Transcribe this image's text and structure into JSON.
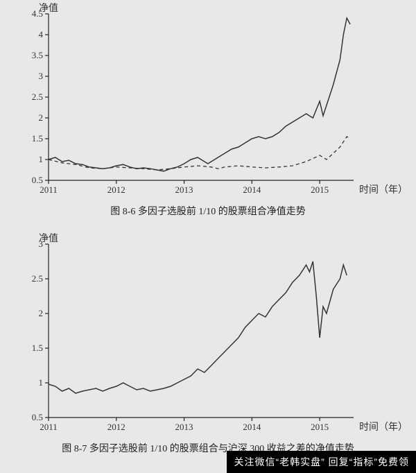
{
  "chart1": {
    "type": "line",
    "y_axis_title": "净值",
    "x_axis_title": "时间（年）",
    "caption": "图 8-6  多因子选股前 1/10 的股票组合净值走势",
    "xlim": [
      2011,
      2015.5
    ],
    "ylim": [
      0.5,
      4.5
    ],
    "ytick_step": 0.5,
    "xticks": [
      2011,
      2012,
      2013,
      2014,
      2015
    ],
    "yticks": [
      0.5,
      1,
      1.5,
      2,
      2.5,
      3,
      3.5,
      4,
      4.5
    ],
    "background_color": "#e8e8e6",
    "axis_color": "#222222",
    "line_color": "#333333",
    "line_color_dashed": "#333333",
    "title_fontsize": 14,
    "tick_fontsize": 13,
    "line_width": 1.5,
    "series_solid": {
      "x": [
        2011,
        2011.1,
        2011.2,
        2011.3,
        2011.4,
        2011.5,
        2011.6,
        2011.7,
        2011.8,
        2011.9,
        2012,
        2012.1,
        2012.2,
        2012.3,
        2012.4,
        2012.5,
        2012.6,
        2012.7,
        2012.8,
        2012.9,
        2013,
        2013.1,
        2013.2,
        2013.3,
        2013.35,
        2013.5,
        2013.6,
        2013.7,
        2013.8,
        2013.9,
        2014,
        2014.1,
        2014.2,
        2014.3,
        2014.4,
        2014.5,
        2014.6,
        2014.7,
        2014.8,
        2014.9,
        2015,
        2015.05,
        2015.1,
        2015.2,
        2015.3,
        2015.35,
        2015.4,
        2015.45
      ],
      "y": [
        1.0,
        1.05,
        0.95,
        0.98,
        0.9,
        0.88,
        0.82,
        0.8,
        0.78,
        0.8,
        0.85,
        0.88,
        0.82,
        0.78,
        0.8,
        0.78,
        0.75,
        0.72,
        0.78,
        0.82,
        0.9,
        1.0,
        1.05,
        0.95,
        0.9,
        1.05,
        1.15,
        1.25,
        1.3,
        1.4,
        1.5,
        1.55,
        1.5,
        1.55,
        1.65,
        1.8,
        1.9,
        2.0,
        2.1,
        2.0,
        2.4,
        2.05,
        2.3,
        2.8,
        3.4,
        4.0,
        4.4,
        4.25
      ]
    },
    "series_dashed": {
      "x": [
        2011,
        2011.2,
        2011.4,
        2011.6,
        2011.8,
        2012,
        2012.2,
        2012.4,
        2012.6,
        2012.8,
        2013,
        2013.2,
        2013.4,
        2013.5,
        2013.6,
        2013.8,
        2014,
        2014.2,
        2014.4,
        2014.6,
        2014.8,
        2015,
        2015.1,
        2015.2,
        2015.3,
        2015.4,
        2015.45
      ],
      "y": [
        1.0,
        0.92,
        0.88,
        0.8,
        0.78,
        0.82,
        0.8,
        0.78,
        0.75,
        0.78,
        0.82,
        0.85,
        0.82,
        0.78,
        0.82,
        0.85,
        0.82,
        0.8,
        0.82,
        0.85,
        0.95,
        1.1,
        1.0,
        1.15,
        1.3,
        1.55,
        1.5
      ]
    }
  },
  "chart2": {
    "type": "line",
    "y_axis_title": "净值",
    "x_axis_title": "时间（年）",
    "caption": "图 8-7  多因子选股前 1/10 的股票组合与沪深 300 收益之差的净值走势",
    "xlim": [
      2011,
      2015.5
    ],
    "ylim": [
      0.5,
      3
    ],
    "ytick_step": 0.5,
    "xticks": [
      2011,
      2012,
      2013,
      2014,
      2015
    ],
    "yticks": [
      0.5,
      1,
      1.5,
      2,
      2.5,
      3
    ],
    "background_color": "#e8e8e6",
    "axis_color": "#222222",
    "line_color": "#333333",
    "title_fontsize": 14,
    "tick_fontsize": 13,
    "line_width": 1.5,
    "series_solid": {
      "x": [
        2011,
        2011.1,
        2011.2,
        2011.3,
        2011.4,
        2011.5,
        2011.6,
        2011.7,
        2011.8,
        2011.9,
        2012,
        2012.1,
        2012.2,
        2012.3,
        2012.4,
        2012.5,
        2012.6,
        2012.7,
        2012.8,
        2012.9,
        2013,
        2013.1,
        2013.2,
        2013.3,
        2013.4,
        2013.5,
        2013.6,
        2013.7,
        2013.8,
        2013.9,
        2014,
        2014.1,
        2014.2,
        2014.3,
        2014.4,
        2014.5,
        2014.6,
        2014.7,
        2014.8,
        2014.85,
        2014.9,
        2014.95,
        2015,
        2015.05,
        2015.1,
        2015.2,
        2015.3,
        2015.35,
        2015.4
      ],
      "y": [
        0.98,
        0.95,
        0.88,
        0.92,
        0.85,
        0.88,
        0.9,
        0.92,
        0.88,
        0.92,
        0.95,
        1.0,
        0.95,
        0.9,
        0.92,
        0.88,
        0.9,
        0.92,
        0.95,
        1.0,
        1.05,
        1.1,
        1.2,
        1.15,
        1.25,
        1.35,
        1.45,
        1.55,
        1.65,
        1.8,
        1.9,
        2.0,
        1.95,
        2.1,
        2.2,
        2.3,
        2.45,
        2.55,
        2.7,
        2.6,
        2.75,
        2.25,
        1.65,
        2.1,
        2.0,
        2.35,
        2.5,
        2.7,
        2.55
      ]
    }
  },
  "banner": {
    "text": "关注微信“老韩实盘”  回复“指标”免费领",
    "bg_color": "#000000",
    "text_color": "#ffffff",
    "fontsize": 14
  }
}
